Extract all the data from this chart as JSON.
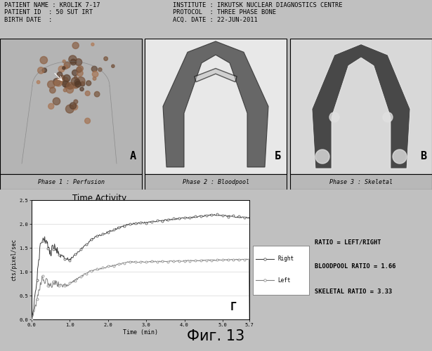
{
  "background_color": "#c0c0c0",
  "header_bg": "#f0f0f0",
  "header_left": "PATIENT NAME : KROLIK 7-17\nPATIENT ID  : 50 SUT IRT\nBIRTH DATE  :",
  "header_right": "INSTITUTE : IRKUTSK NUCLEAR DIAGNOSTICS CENTRE\nPROTOCOL  : THREE PHASE BONE\nACQ. DATE : 22-JUN-2011",
  "phase_labels": [
    "Phase 1 : Perfusion",
    "Phase 2 : Bloodpool",
    "Phase 3 : Skeletal"
  ],
  "panel_letters": [
    "A",
    "Б",
    "В"
  ],
  "chart_title": "Time Activity",
  "xlabel": "Time (min)",
  "ylabel": "cts/pixel/sec",
  "xlim": [
    0.0,
    5.7
  ],
  "ylim": [
    0.0,
    2.5
  ],
  "xtick_vals": [
    0.0,
    1.0,
    2.0,
    3.0,
    4.0,
    5.0,
    5.7
  ],
  "xtick_labels": [
    "0.0",
    "1.0",
    "2.0",
    "3.0",
    "4.0",
    "5.0",
    "5.7"
  ],
  "ytick_vals": [
    0.0,
    0.5,
    1.0,
    1.5,
    2.0,
    2.5
  ],
  "ytick_labels": [
    "0.0",
    "0.5",
    "1.0",
    "1.5",
    "2.0",
    "2.5"
  ],
  "panel_letter_chart": "Г",
  "legend_right_label": "Right",
  "legend_left_label": "Left",
  "ratio_text1": "RATIO = LEFT/RIGHT",
  "ratio_text2": "BLOODPOOL RATIO = 1.66",
  "ratio_text3": "SKELETAL RATIO = 3.33",
  "fig_label": "Фиг. 13",
  "line_color_right": "#404040",
  "line_color_left": "#808080",
  "chart_bg": "#ffffff",
  "panel1_bg": "#b8b8b8",
  "panel2_bg": "#d0d0d0",
  "panel3_bg": "#c4c4c4",
  "label_bar_bg": "#b8b8b8"
}
